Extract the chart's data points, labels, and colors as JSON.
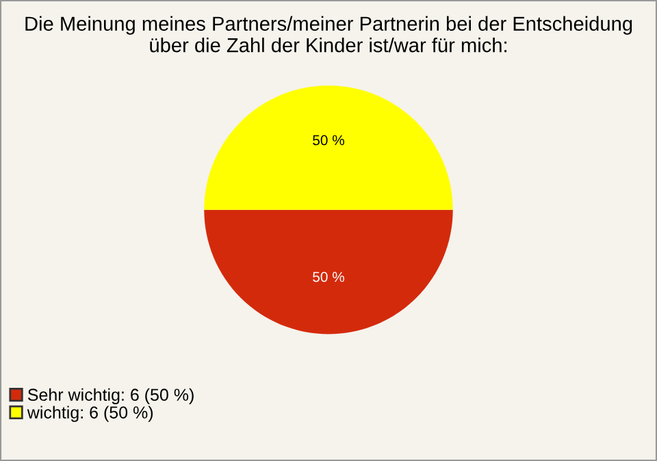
{
  "chart_data": {
    "type": "pie",
    "title": "Die Meinung meines Partners/meiner Partnerin bei der Entscheidung\nüber die Zahl der Kinder ist/war für mich:",
    "categories": [
      "Sehr wichtig: 6 (50 %)",
      "wichtig: 6 (50 %)"
    ],
    "values": [
      50,
      50
    ],
    "colors": [
      "#d42a0c",
      "#ffff00"
    ],
    "value_labels": [
      "50 %",
      "50 %"
    ],
    "legend": "bottom left"
  }
}
